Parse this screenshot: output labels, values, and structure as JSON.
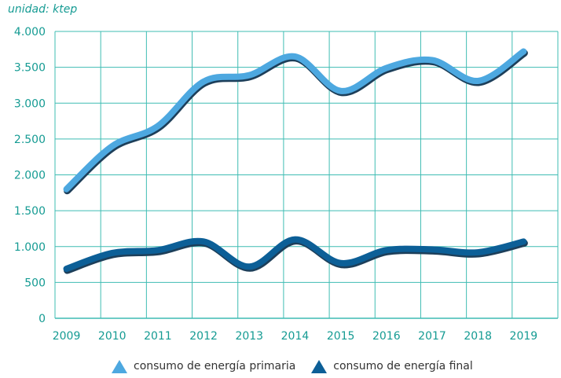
{
  "chart_data": {
    "type": "line",
    "unit_label": "unidad: ktep",
    "categories": [
      "2009",
      "2010",
      "2011",
      "2012",
      "2013",
      "2014",
      "2015",
      "2016",
      "2017",
      "2018",
      "2019"
    ],
    "ylim": [
      0,
      4000
    ],
    "yticks": [
      0,
      500,
      1000,
      1500,
      2000,
      2500,
      3000,
      3500,
      4000
    ],
    "ytick_labels": [
      "0",
      "500",
      "1.000",
      "1.500",
      "2.000",
      "2.500",
      "3.000",
      "3.500",
      "4.000"
    ],
    "grid": true,
    "legend_position": "bottom",
    "series": [
      {
        "name": "consumo de energía primaria",
        "color": "#4da8e0",
        "values": [
          1800,
          2400,
          2680,
          3300,
          3390,
          3650,
          3170,
          3490,
          3600,
          3310,
          3720
        ]
      },
      {
        "name": "consumo de energía final",
        "color": "#0c5f97",
        "values": [
          690,
          910,
          950,
          1070,
          720,
          1100,
          770,
          950,
          960,
          920,
          1070
        ]
      }
    ],
    "colors": {
      "axis_text": "#159b93",
      "grid": "#3fbcb3"
    }
  }
}
